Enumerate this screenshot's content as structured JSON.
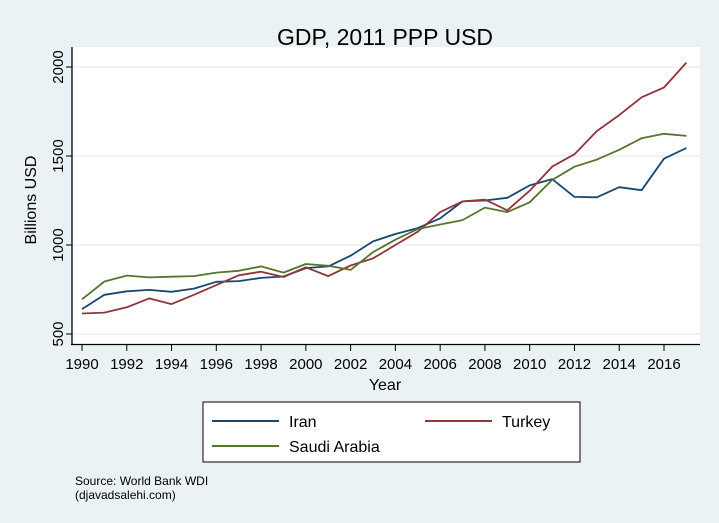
{
  "chart_data": {
    "type": "line",
    "title": "GDP, 2011 PPP USD",
    "xlabel": "Year",
    "ylabel": "Billions USD",
    "xlim": [
      1989.6,
      2017.7
    ],
    "ylim": [
      450,
      2070
    ],
    "xticks": [
      1990,
      1992,
      1994,
      1996,
      1998,
      2000,
      2002,
      2004,
      2006,
      2008,
      2010,
      2012,
      2014,
      2016
    ],
    "yticks": [
      500,
      1000,
      1500,
      2000
    ],
    "grid": true,
    "legend_position": "bottom",
    "x": [
      1990,
      1991,
      1992,
      1993,
      1994,
      1995,
      1996,
      1997,
      1998,
      1999,
      2000,
      2001,
      2002,
      2003,
      2004,
      2005,
      2006,
      2007,
      2008,
      2009,
      2010,
      2011,
      2012,
      2013,
      2014,
      2015,
      2016,
      2017
    ],
    "series": [
      {
        "name": "Iran",
        "color": "#1a476f",
        "values": [
          640,
          720,
          740,
          748,
          737,
          755,
          793,
          797,
          815,
          823,
          870,
          880,
          940,
          1020,
          1062,
          1095,
          1150,
          1245,
          1250,
          1265,
          1335,
          1370,
          1270,
          1268,
          1325,
          1308,
          1485,
          1545
        ]
      },
      {
        "name": "Turkey",
        "color": "#90353b",
        "values": [
          615,
          620,
          650,
          700,
          668,
          720,
          775,
          830,
          850,
          820,
          875,
          825,
          885,
          925,
          1000,
          1075,
          1185,
          1245,
          1255,
          1195,
          1305,
          1440,
          1510,
          1640,
          1730,
          1830,
          1885,
          2025
        ]
      },
      {
        "name": "Saudi Arabia",
        "color": "#55752f",
        "values": [
          695,
          795,
          828,
          818,
          822,
          825,
          845,
          855,
          880,
          845,
          893,
          883,
          860,
          960,
          1030,
          1090,
          1115,
          1140,
          1210,
          1185,
          1240,
          1365,
          1440,
          1480,
          1535,
          1600,
          1625,
          1613
        ]
      }
    ],
    "note_lines": [
      "Source: World Bank WDI",
      "(djavadsalehi.com)"
    ]
  }
}
